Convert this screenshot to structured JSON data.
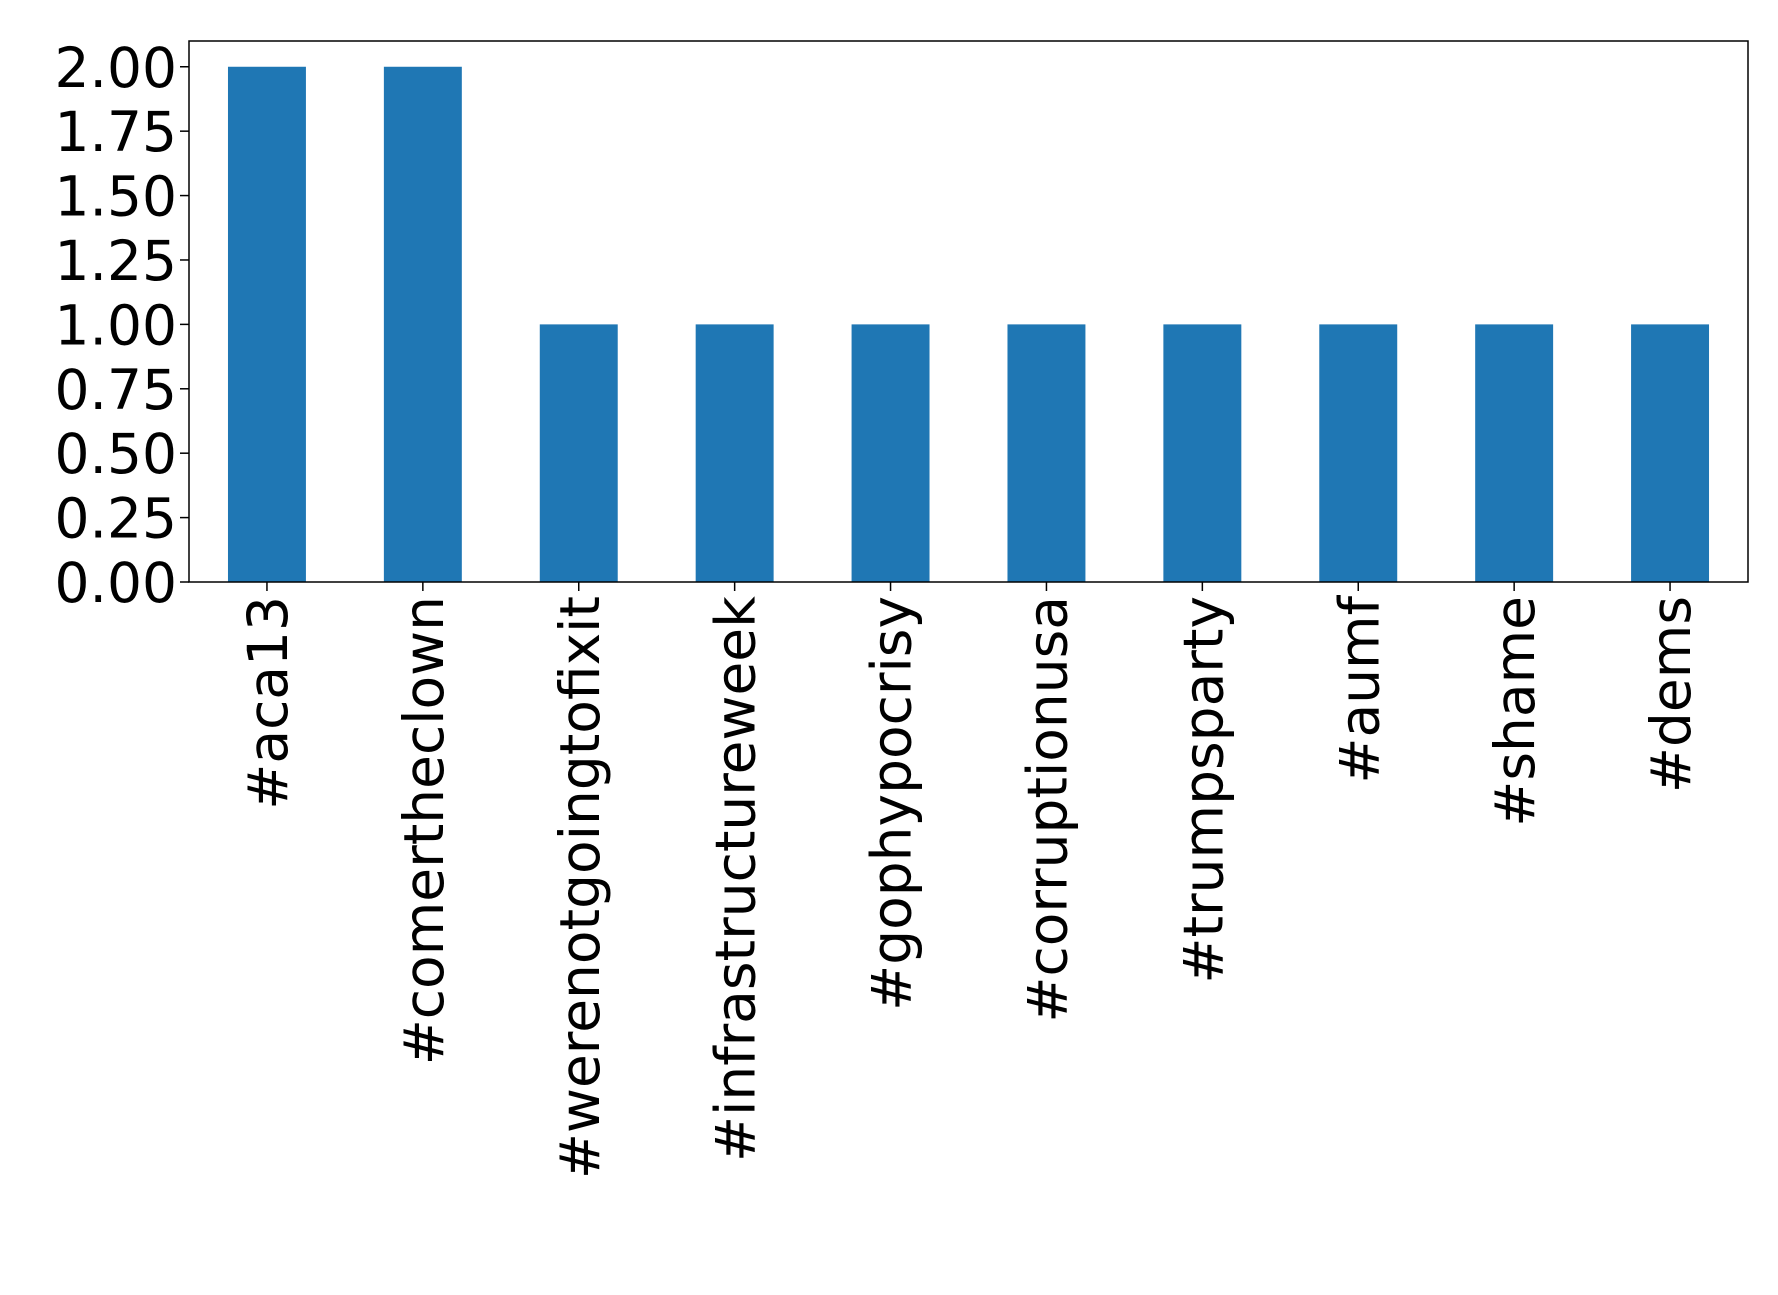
{
  "chart_data": {
    "type": "bar",
    "categories": [
      "#aca13",
      "#comertheclown",
      "#werenotgoingtofixit",
      "#infrastructureweek",
      "#gophypocrisy",
      "#corruptionusa",
      "#trumpsparty",
      "#aumf",
      "#shame",
      "#dems"
    ],
    "values": [
      2,
      2,
      1,
      1,
      1,
      1,
      1,
      1,
      1,
      1
    ],
    "color": "#1f77b4",
    "ylim": [
      0,
      2.1
    ],
    "yticks": [
      {
        "value": 0,
        "label": "0.00"
      },
      {
        "value": 0.25,
        "label": "0.25"
      },
      {
        "value": 0.5,
        "label": "0.50"
      },
      {
        "value": 0.75,
        "label": "0.75"
      },
      {
        "value": 1,
        "label": "1.00"
      },
      {
        "value": 1.25,
        "label": "1.25"
      },
      {
        "value": 1.5,
        "label": "1.50"
      },
      {
        "value": 1.75,
        "label": "1.75"
      },
      {
        "value": 2,
        "label": "2.00"
      }
    ],
    "grid": false
  }
}
